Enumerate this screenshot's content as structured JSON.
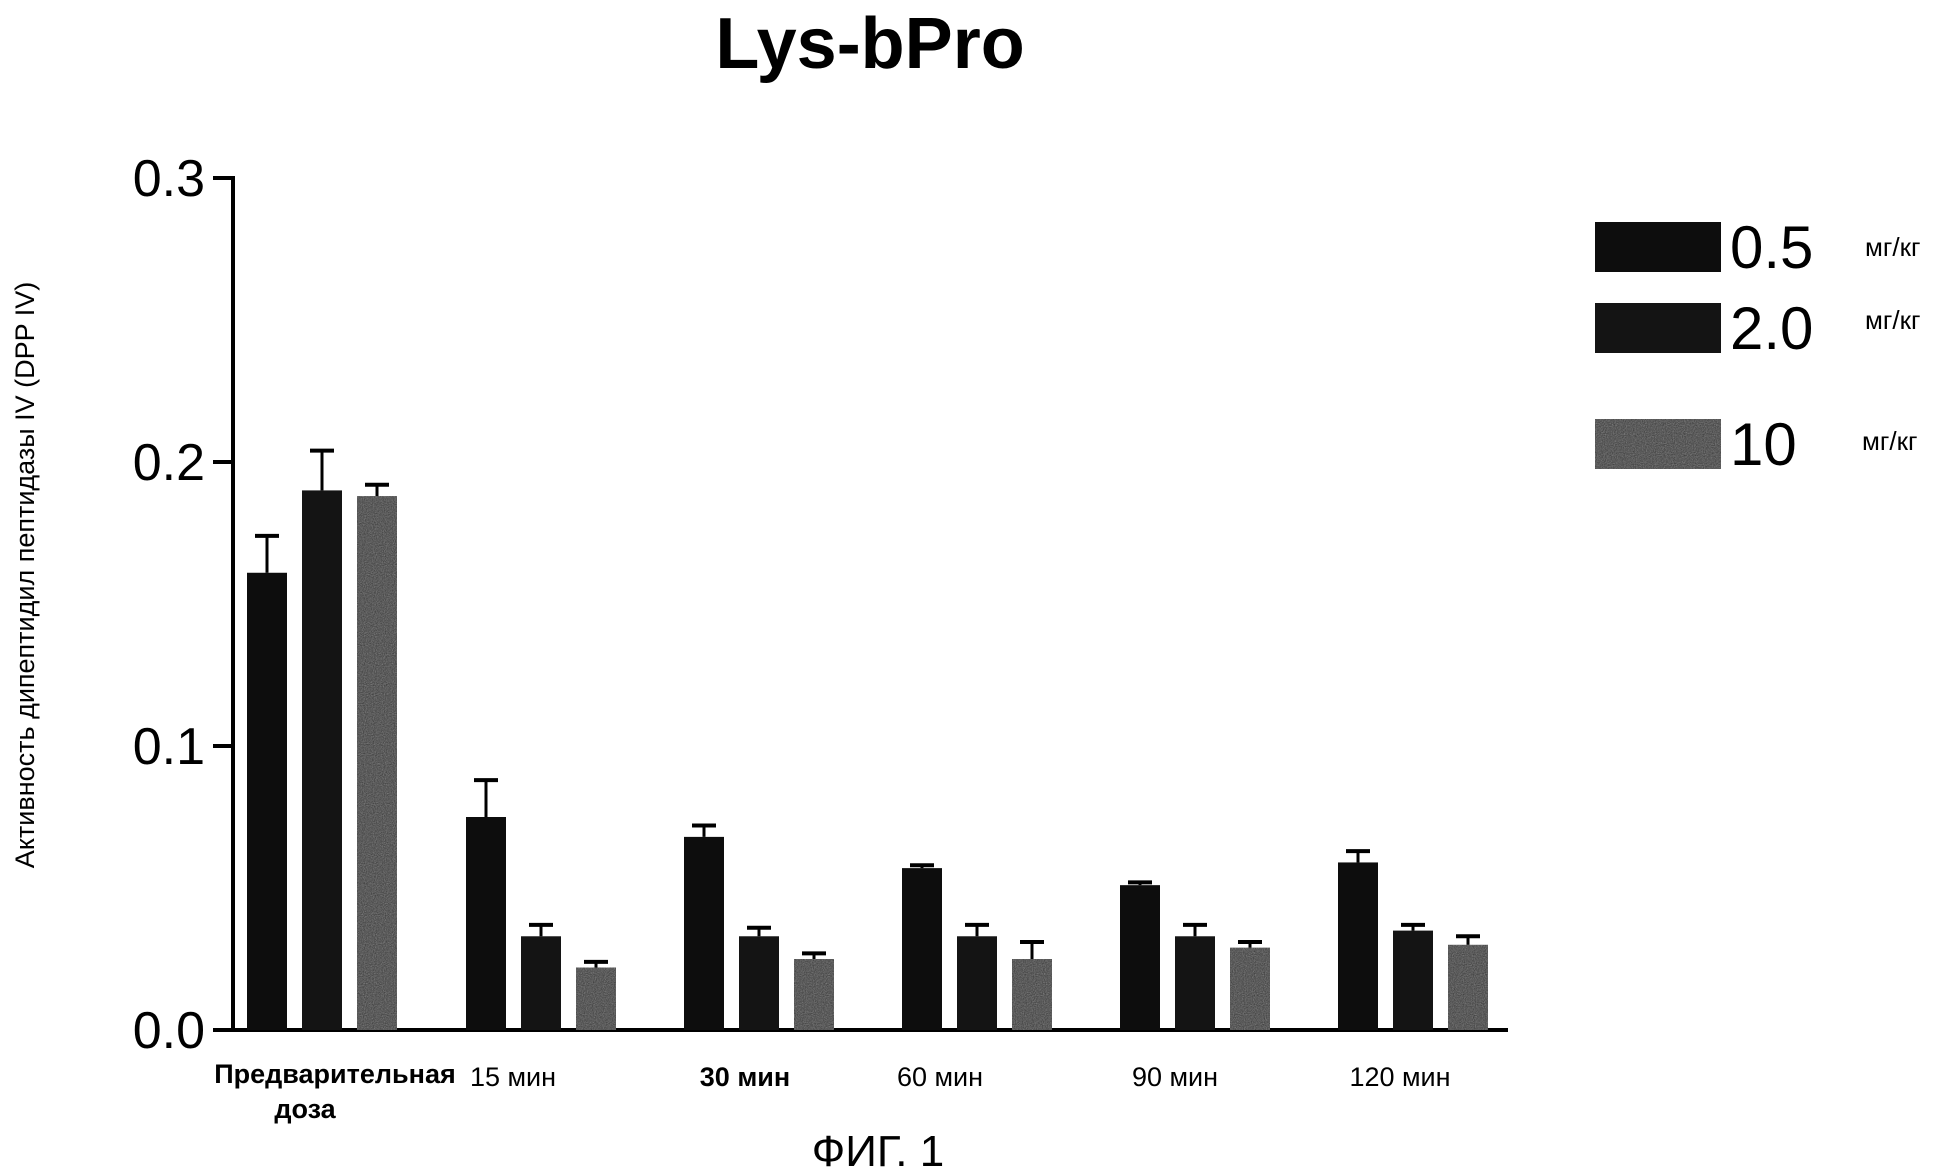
{
  "chart_data": {
    "type": "bar",
    "title": "Lys-bPro",
    "ylabel": "Активность дипептидил пептидазы IV (DPP IV)",
    "xlabel": "",
    "ylim": [
      0,
      0.3
    ],
    "yticks": [
      "0.0",
      "0.1",
      "0.2",
      "0.3"
    ],
    "categories": [
      "Предварительная доза",
      "15 мин",
      "30 мин",
      "60 мин",
      "90 мин",
      "120 мин"
    ],
    "series": [
      {
        "name": "0.5",
        "unit": "мг/кг",
        "color": "#0d0d0d",
        "values": [
          0.161,
          0.075,
          0.068,
          0.057,
          0.051,
          0.059
        ],
        "errors": [
          0.013,
          0.013,
          0.004,
          0.001,
          0.001,
          0.004
        ]
      },
      {
        "name": "2.0",
        "unit": "мг/кг",
        "color": "#141414",
        "values": [
          0.19,
          0.033,
          0.033,
          0.033,
          0.033,
          0.035
        ],
        "errors": [
          0.014,
          0.004,
          0.003,
          0.004,
          0.004,
          0.002
        ]
      },
      {
        "name": "10",
        "unit": "мг/кг",
        "color": "#2a2a2a",
        "values": [
          0.188,
          0.022,
          0.025,
          0.025,
          0.029,
          0.03
        ],
        "errors": [
          0.004,
          0.002,
          0.002,
          0.006,
          0.002,
          0.003
        ]
      }
    ],
    "legend_position": "top-right"
  },
  "caption": "ФИГ. 1"
}
